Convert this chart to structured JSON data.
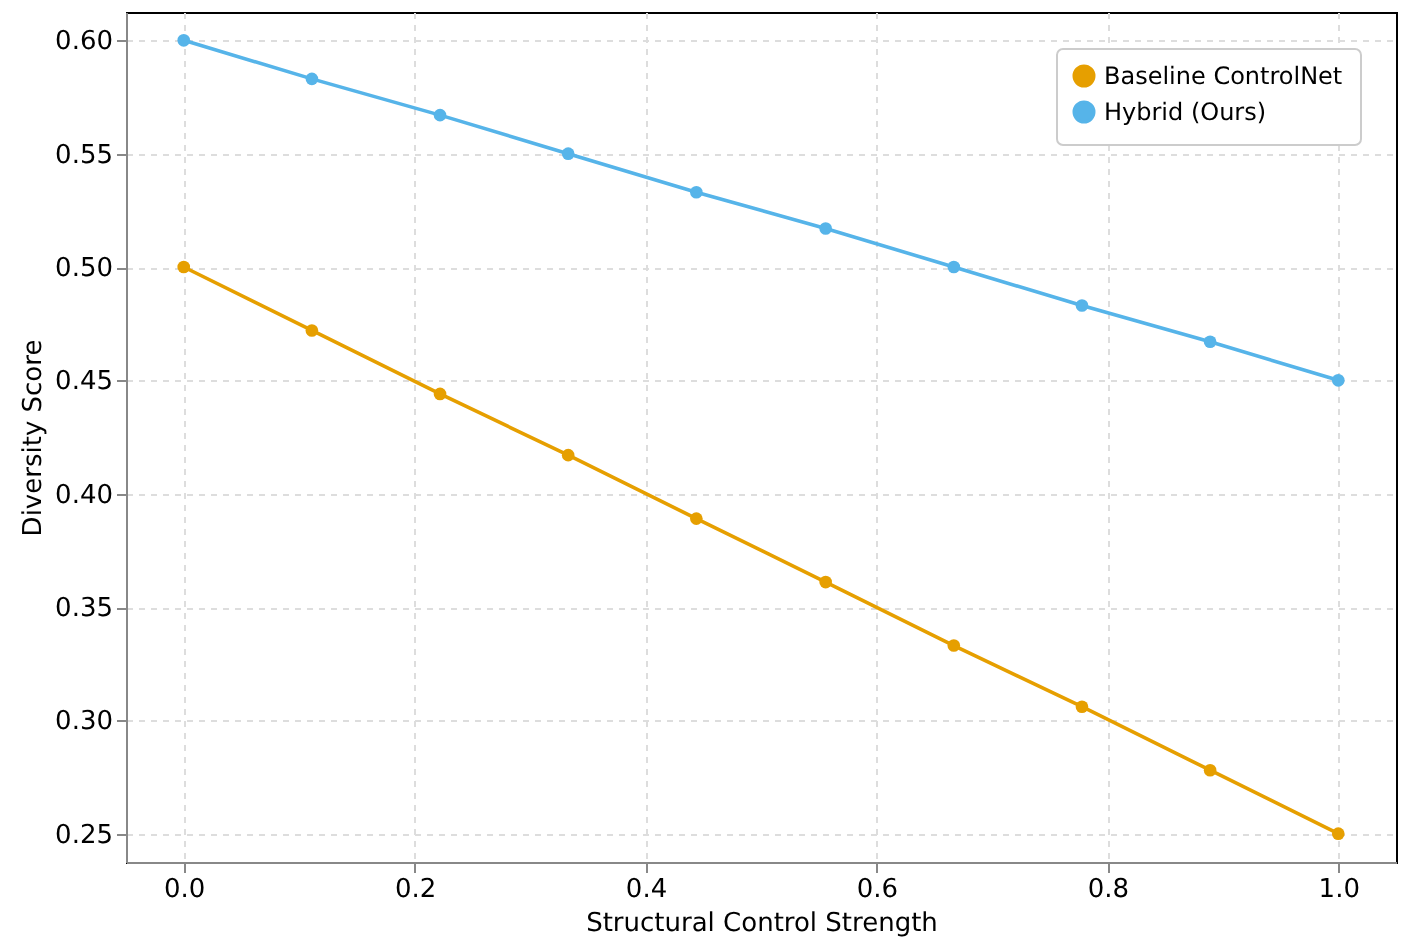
{
  "chart_data": {
    "type": "line",
    "xlabel": "Structural Control Strength",
    "ylabel": "Diversity Score",
    "x": [
      0,
      0.111,
      0.222,
      0.333,
      0.444,
      0.556,
      0.667,
      0.778,
      0.889,
      1.0
    ],
    "series": [
      {
        "name": "Baseline ControlNet",
        "color": "#e69f00",
        "values": [
          0.5,
          0.472,
          0.444,
          0.417,
          0.389,
          0.361,
          0.333,
          0.306,
          0.278,
          0.25
        ]
      },
      {
        "name": "Hybrid (Ours)",
        "color": "#56b4e9",
        "values": [
          0.6,
          0.583,
          0.567,
          0.55,
          0.533,
          0.517,
          0.5,
          0.483,
          0.467,
          0.45
        ]
      }
    ],
    "xlim": [
      -0.05,
      1.05
    ],
    "ylim": [
      0.2375,
      0.6125
    ],
    "xticks": [
      {
        "value": 0,
        "label": "0.0"
      },
      0.2,
      0.4,
      0.6,
      0.8,
      {
        "value": 1,
        "label": "1.0"
      }
    ],
    "yticks": [
      0.25,
      {
        "value": 0.3,
        "label": "0.30"
      },
      0.35,
      {
        "value": 0.4,
        "label": "0.40"
      },
      0.45,
      {
        "value": 0.5,
        "label": "0.50"
      },
      0.55,
      {
        "value": 0.6,
        "label": "0.60"
      }
    ],
    "grid": true,
    "legend": "top right",
    "marker": "circle",
    "line_style": "solid"
  }
}
